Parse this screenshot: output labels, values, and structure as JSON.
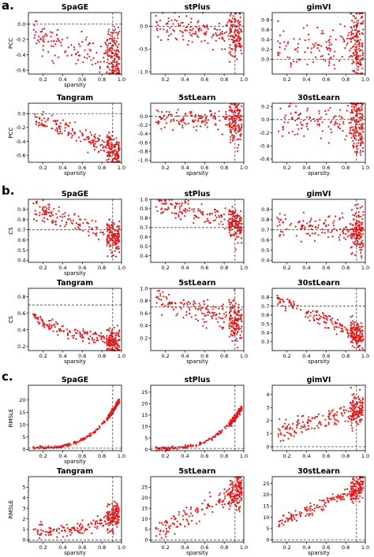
{
  "figure": {
    "sections": [
      {
        "letter": "a.",
        "metric": "PCC"
      },
      {
        "letter": "b.",
        "metric": "CS"
      },
      {
        "letter": "c.",
        "metric": "RMSLE"
      }
    ]
  },
  "chart_data": [
    {
      "type": "scatter",
      "section": "a.",
      "title": "SpaGE",
      "xlabel": "sparsity",
      "ylabel": "PCC",
      "xlim": [
        0.05,
        1.0
      ],
      "ylim": [
        -0.65,
        0.15
      ],
      "xticks": [
        "0.2",
        "0.4",
        "0.6",
        "0.8",
        "1.0"
      ],
      "yticks": [
        "0.0",
        "-0.2",
        "-0.4",
        "-0.6"
      ],
      "ref_h": 0.0,
      "ref_v": 0.91,
      "trend": {
        "shape": "concave",
        "y0": -0.05,
        "y1": -0.45,
        "spread": 0.1
      },
      "n_points": 260,
      "color": "#e41a1c"
    },
    {
      "type": "scatter",
      "section": "a.",
      "title": "stPlus",
      "xlabel": "",
      "ylabel": "",
      "xlim": [
        0.05,
        1.0
      ],
      "ylim": [
        -1.05,
        0.3
      ],
      "xticks": [
        "0.2",
        "0.4",
        "0.6",
        "0.8",
        "1.0"
      ],
      "yticks": [
        "0.0",
        "-0.5",
        "-1.0"
      ],
      "ref_h": 0.0,
      "ref_v": 0.91,
      "trend": {
        "shape": "flat",
        "y0": 0.0,
        "y1": -0.15,
        "spread": 0.15
      },
      "n_points": 260,
      "color": "#e41a1c"
    },
    {
      "type": "scatter",
      "section": "a.",
      "title": "gimVI",
      "xlabel": "",
      "ylabel": "",
      "xlim": [
        0.05,
        1.0
      ],
      "ylim": [
        -0.3,
        0.95
      ],
      "xticks": [
        "0.2",
        "0.4",
        "0.6",
        "0.8",
        "1.0"
      ],
      "yticks": [
        "0.0",
        "0.2",
        "0.4",
        "0.6",
        "0.8"
      ],
      "ref_h": 0.0,
      "ref_v": 0.91,
      "trend": {
        "shape": "flat",
        "y0": 0.25,
        "y1": 0.3,
        "spread": 0.22
      },
      "n_points": 260,
      "color": "#e41a1c"
    },
    {
      "type": "scatter",
      "section": "a.",
      "title": "Tangram",
      "xlabel": "sparsity",
      "ylabel": "PCC",
      "xlim": [
        0.05,
        1.0
      ],
      "ylim": [
        -0.7,
        0.15
      ],
      "xticks": [
        "0.2",
        "0.4",
        "0.6",
        "0.8",
        "1.0"
      ],
      "yticks": [
        "0.0",
        "-0.2",
        "-0.4",
        "-0.6"
      ],
      "ref_h": 0.0,
      "ref_v": 0.91,
      "trend": {
        "shape": "linear",
        "y0": -0.05,
        "y1": -0.55,
        "spread": 0.06
      },
      "n_points": 260,
      "color": "#e41a1c"
    },
    {
      "type": "scatter",
      "section": "a.",
      "title": "5stLearn",
      "xlabel": "sparsity",
      "ylabel": "",
      "xlim": [
        0.05,
        1.0
      ],
      "ylim": [
        -1.05,
        0.3
      ],
      "xticks": [
        "0.2",
        "0.4",
        "0.6",
        "0.8",
        "1.0"
      ],
      "yticks": [
        "0.0",
        "-0.2",
        "-0.4",
        "-0.6",
        "-0.8",
        "-1.0"
      ],
      "ref_h": 0.0,
      "ref_v": 0.91,
      "trend": {
        "shape": "flat",
        "y0": 0.0,
        "y1": -0.1,
        "spread": 0.14
      },
      "n_points": 260,
      "color": "#e41a1c"
    },
    {
      "type": "scatter",
      "section": "a.",
      "title": "30stLearn",
      "xlabel": "sparsity",
      "ylabel": "",
      "xlim": [
        0.05,
        1.0
      ],
      "ylim": [
        -0.65,
        0.25
      ],
      "xticks": [
        "0.2",
        "0.4",
        "0.6",
        "0.8",
        "1.0"
      ],
      "yticks": [
        "0.2",
        "0.0",
        "-0.2",
        "-0.4",
        "-0.6"
      ],
      "ref_h": 0.0,
      "ref_v": 0.91,
      "trend": {
        "shape": "flat",
        "y0": 0.0,
        "y1": -0.05,
        "spread": 0.12
      },
      "n_points": 260,
      "color": "#e41a1c"
    },
    {
      "type": "scatter",
      "section": "b.",
      "title": "SpaGE",
      "xlabel": "sparsity",
      "ylabel": "CS",
      "xlim": [
        0.05,
        1.0
      ],
      "ylim": [
        0.38,
        1.0
      ],
      "xticks": [
        "0.2",
        "0.4",
        "0.6",
        "0.8",
        "1.0"
      ],
      "yticks": [
        "0.9",
        "0.8",
        "0.7",
        "0.6",
        "0.5",
        "0.4"
      ],
      "ref_h": 0.7,
      "ref_v": 0.91,
      "trend": {
        "shape": "linear",
        "y0": 0.92,
        "y1": 0.6,
        "spread": 0.05
      },
      "n_points": 260,
      "color": "#e41a1c"
    },
    {
      "type": "scatter",
      "section": "b.",
      "title": "stPlus",
      "xlabel": "",
      "ylabel": "",
      "xlim": [
        0.05,
        1.0
      ],
      "ylim": [
        0.33,
        1.0
      ],
      "xticks": [
        "0.2",
        "0.4",
        "0.6",
        "0.8",
        "1.0"
      ],
      "yticks": [
        "1.0",
        "0.9",
        "0.8",
        "0.7",
        "0.6",
        "0.5",
        "0.4"
      ],
      "ref_h": 0.7,
      "ref_v": 0.91,
      "trend": {
        "shape": "linear",
        "y0": 0.97,
        "y1": 0.72,
        "spread": 0.05
      },
      "n_points": 260,
      "color": "#e41a1c"
    },
    {
      "type": "scatter",
      "section": "b.",
      "title": "gimVI",
      "xlabel": "",
      "ylabel": "",
      "xlim": [
        0.05,
        1.0
      ],
      "ylim": [
        0.38,
        1.0
      ],
      "xticks": [
        "0.2",
        "0.4",
        "0.6",
        "0.8",
        "1.0"
      ],
      "yticks": [
        "0.9",
        "0.8",
        "0.7",
        "0.6",
        "0.5",
        "0.4"
      ],
      "ref_h": 0.7,
      "ref_v": 0.91,
      "trend": {
        "shape": "flat",
        "y0": 0.75,
        "y1": 0.7,
        "spread": 0.06
      },
      "n_points": 260,
      "color": "#e41a1c"
    },
    {
      "type": "scatter",
      "section": "b.",
      "title": "Tangram",
      "xlabel": "sparsity",
      "ylabel": "CS",
      "xlim": [
        0.05,
        1.0
      ],
      "ylim": [
        0.15,
        0.9
      ],
      "xticks": [
        "0.2",
        "0.4",
        "0.6",
        "0.8",
        "1.0"
      ],
      "yticks": [
        "0.8",
        "0.6",
        "0.4",
        "0.2"
      ],
      "ref_h": 0.7,
      "ref_v": 0.91,
      "trend": {
        "shape": "concave",
        "y0": 0.6,
        "y1": 0.25,
        "spread": 0.04
      },
      "n_points": 260,
      "color": "#e41a1c"
    },
    {
      "type": "scatter",
      "section": "b.",
      "title": "5stLearn",
      "xlabel": "sparsity",
      "ylabel": "",
      "xlim": [
        0.05,
        1.0
      ],
      "ylim": [
        0.0,
        1.0
      ],
      "xticks": [
        "0.2",
        "0.4",
        "0.6",
        "0.8",
        "1.0"
      ],
      "yticks": [
        "1.0",
        "0.8",
        "0.6",
        "0.4",
        "0.2"
      ],
      "ref_h": 0.7,
      "ref_v": 0.91,
      "trend": {
        "shape": "linear",
        "y0": 0.82,
        "y1": 0.45,
        "spread": 0.1
      },
      "n_points": 260,
      "color": "#e41a1c"
    },
    {
      "type": "scatter",
      "section": "b.",
      "title": "30stLearn",
      "xlabel": "sparsity",
      "ylabel": "",
      "xlim": [
        0.05,
        1.0
      ],
      "ylim": [
        0.2,
        0.9
      ],
      "xticks": [
        "0.2",
        "0.4",
        "0.6",
        "0.8",
        "1.0"
      ],
      "yticks": [
        "0.8",
        "0.7",
        "0.6",
        "0.5",
        "0.4",
        "0.3"
      ],
      "ref_h": 0.7,
      "ref_v": 0.91,
      "trend": {
        "shape": "linear",
        "y0": 0.78,
        "y1": 0.35,
        "spread": 0.04
      },
      "n_points": 260,
      "color": "#e41a1c"
    },
    {
      "type": "scatter",
      "section": "c.",
      "title": "SpaGE",
      "xlabel": "sparsity",
      "ylabel": "RMSLE",
      "xlim": [
        0.05,
        1.0
      ],
      "ylim": [
        -0.5,
        26
      ],
      "xticks": [
        "0.2",
        "0.4",
        "0.6",
        "0.8",
        "1.0"
      ],
      "yticks": [
        "20",
        "15",
        "10",
        "5",
        "0"
      ],
      "ref_h": 0.5,
      "ref_v": 0.91,
      "trend": {
        "shape": "exp",
        "y0": 0.8,
        "y1": 20,
        "spread": 0.3
      },
      "n_points": 260,
      "color": "#e41a1c"
    },
    {
      "type": "scatter",
      "section": "c.",
      "title": "stPlus",
      "xlabel": "",
      "ylabel": "",
      "xlim": [
        0.05,
        1.0
      ],
      "ylim": [
        -0.5,
        28
      ],
      "xticks": [
        "0.2",
        "0.4",
        "0.6",
        "0.8",
        "1.0"
      ],
      "yticks": [
        "25",
        "20",
        "15",
        "10",
        "5",
        "0"
      ],
      "ref_h": 0.5,
      "ref_v": 0.91,
      "trend": {
        "shape": "exp",
        "y0": 0.5,
        "y1": 18,
        "spread": 0.4
      },
      "n_points": 260,
      "color": "#e41a1c"
    },
    {
      "type": "scatter",
      "section": "c.",
      "title": "gimVI",
      "xlabel": "",
      "ylabel": "",
      "xlim": [
        0.05,
        1.0
      ],
      "ylim": [
        -0.3,
        4.7
      ],
      "xticks": [
        "0.2",
        "0.4",
        "0.6",
        "0.8",
        "1.0"
      ],
      "yticks": [
        "4",
        "3",
        "2",
        "1",
        "0"
      ],
      "ref_h": 0.0,
      "ref_v": 0.91,
      "trend": {
        "shape": "linear",
        "y0": 1.1,
        "y1": 3.0,
        "spread": 0.35
      },
      "n_points": 260,
      "color": "#e41a1c"
    },
    {
      "type": "scatter",
      "section": "c.",
      "title": "Tangram",
      "xlabel": "sparsity",
      "ylabel": "RMSLE",
      "xlim": [
        0.05,
        1.0
      ],
      "ylim": [
        -0.2,
        6.0
      ],
      "xticks": [
        "0.2",
        "0.4",
        "0.6",
        "0.8",
        "1.0"
      ],
      "yticks": [
        "5",
        "4",
        "3",
        "2",
        "1",
        "0"
      ],
      "ref_h": 0.0,
      "ref_v": 0.91,
      "trend": {
        "shape": "exp",
        "y0": 0.9,
        "y1": 2.6,
        "spread": 0.35
      },
      "n_points": 260,
      "color": "#e41a1c"
    },
    {
      "type": "scatter",
      "section": "c.",
      "title": "5stLearn",
      "xlabel": "sparsity",
      "ylabel": "",
      "xlim": [
        0.05,
        1.0
      ],
      "ylim": [
        -1,
        30
      ],
      "xticks": [
        "0.2",
        "0.4",
        "0.6",
        "0.8",
        "1.0"
      ],
      "yticks": [
        "25",
        "20",
        "15",
        "10",
        "5",
        "0"
      ],
      "ref_h": 0.0,
      "ref_v": 0.91,
      "trend": {
        "shape": "linear",
        "y0": 4,
        "y1": 24,
        "spread": 2.5
      },
      "n_points": 260,
      "color": "#e41a1c"
    },
    {
      "type": "scatter",
      "section": "c.",
      "title": "30stLearn",
      "xlabel": "sparsity",
      "ylabel": "",
      "xlim": [
        0.05,
        1.0
      ],
      "ylim": [
        -1,
        28
      ],
      "xticks": [
        "0.2",
        "0.4",
        "0.6",
        "0.8",
        "1.0"
      ],
      "yticks": [
        "25",
        "20",
        "15",
        "10",
        "5",
        "0"
      ],
      "ref_h": 0.0,
      "ref_v": 0.91,
      "trend": {
        "shape": "linear",
        "y0": 7,
        "y1": 24,
        "spread": 1.4
      },
      "n_points": 260,
      "color": "#e41a1c"
    }
  ]
}
